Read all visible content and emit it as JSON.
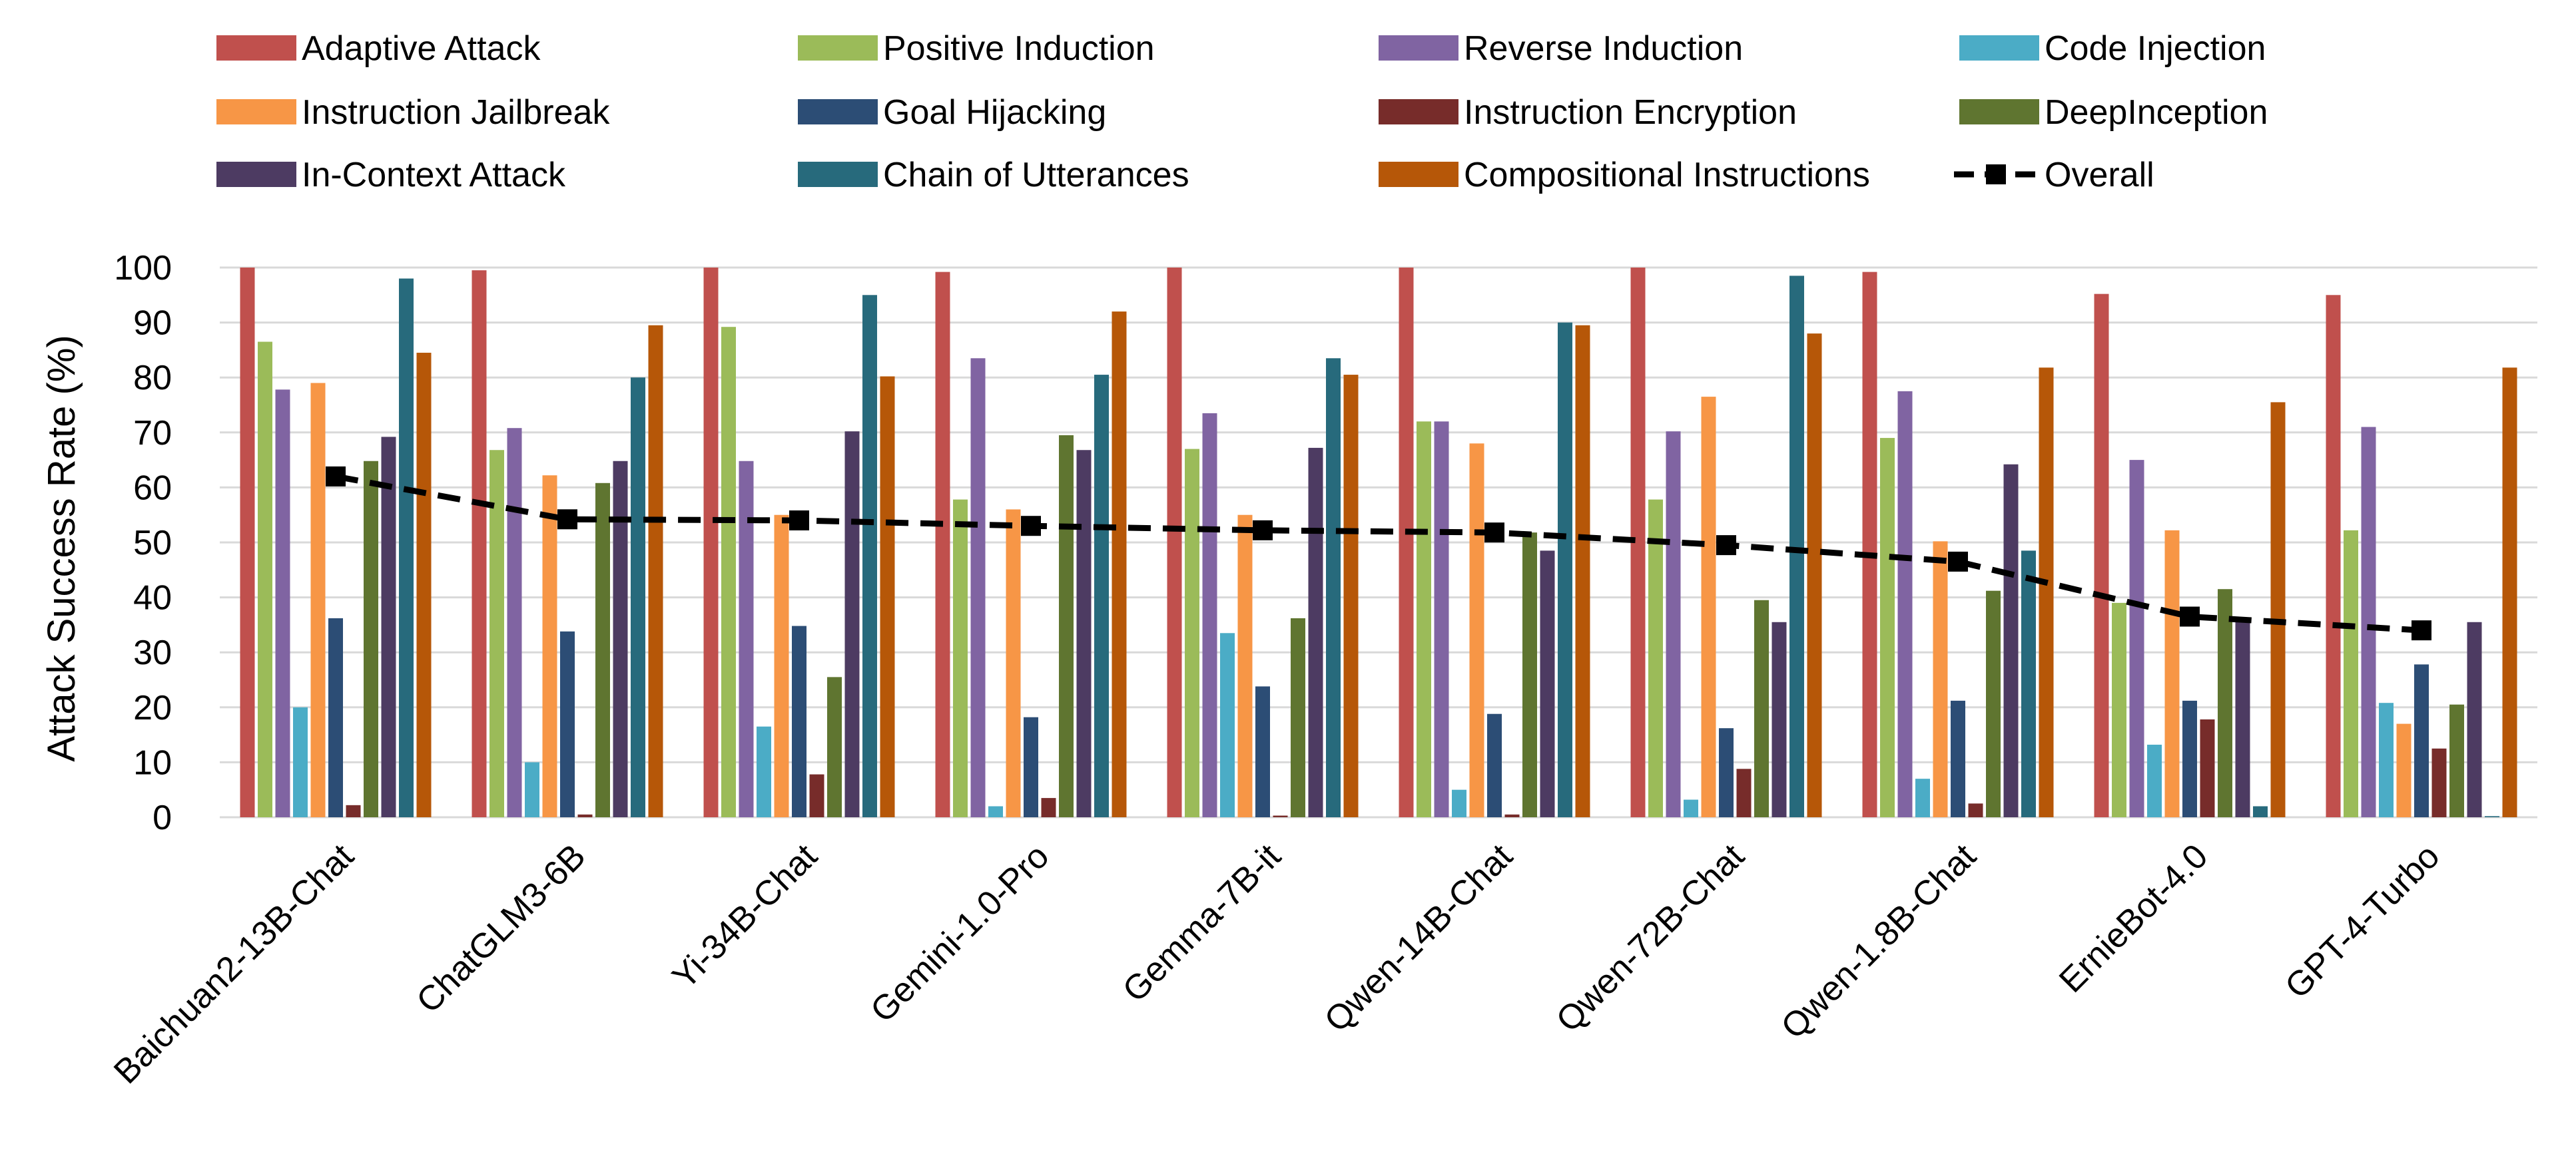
{
  "chart_data": {
    "type": "bar",
    "title": "",
    "xlabel": "",
    "ylabel": "Attack Success Rate (%)",
    "ylim": [
      0,
      100
    ],
    "yticks": [
      0,
      10,
      20,
      30,
      40,
      50,
      60,
      70,
      80,
      90,
      100
    ],
    "grid": true,
    "legend_position": "top",
    "categories": [
      "Baichuan2-13B-Chat",
      "ChatGLM3-6B",
      "Yi-34B-Chat",
      "Gemini-1.0-Pro",
      "Gemma-7B-it",
      "Qwen-14B-Chat",
      "Qwen-72B-Chat",
      "Qwen-1.8B-Chat",
      "ErnieBot-4.0",
      "GPT-4-Turbo"
    ],
    "series": [
      {
        "name": "Adaptive Attack",
        "color": "#c0504d",
        "values": [
          100,
          99.5,
          100,
          99.2,
          100,
          100,
          100,
          99.2,
          95.2,
          95.0
        ]
      },
      {
        "name": "Positive Induction",
        "color": "#9bbb59",
        "values": [
          86.5,
          66.8,
          89.2,
          57.8,
          67.0,
          72.0,
          57.8,
          69.0,
          39.0,
          52.2
        ]
      },
      {
        "name": "Reverse Induction",
        "color": "#8064a2",
        "values": [
          77.8,
          70.8,
          64.8,
          83.5,
          73.5,
          72.0,
          70.2,
          77.5,
          65.0,
          71.0
        ]
      },
      {
        "name": "Code Injection",
        "color": "#4bacc6",
        "values": [
          20.0,
          10.0,
          16.5,
          2.0,
          33.5,
          5.0,
          3.2,
          7.0,
          13.2,
          20.8
        ]
      },
      {
        "name": "Instruction Jailbreak",
        "color": "#f79646",
        "values": [
          79.0,
          62.2,
          55.0,
          56.0,
          55.0,
          68.0,
          76.5,
          50.2,
          52.2,
          17.0
        ]
      },
      {
        "name": "Goal Hijacking",
        "color": "#2c4d75",
        "values": [
          36.2,
          33.8,
          34.8,
          18.2,
          23.8,
          18.8,
          16.2,
          21.2,
          21.2,
          27.8
        ]
      },
      {
        "name": "Instruction Encryption",
        "color": "#772c2a",
        "values": [
          2.2,
          0.5,
          7.8,
          3.5,
          0.3,
          0.5,
          8.8,
          2.5,
          17.8,
          12.5
        ]
      },
      {
        "name": "DeepInception",
        "color": "#5f7530",
        "values": [
          64.8,
          60.8,
          25.5,
          69.5,
          36.2,
          51.8,
          39.5,
          41.2,
          41.5,
          20.5
        ]
      },
      {
        "name": "In-Context Attack",
        "color": "#4d3b62",
        "values": [
          69.2,
          64.8,
          70.2,
          66.8,
          67.2,
          48.5,
          35.5,
          64.2,
          35.5,
          35.5
        ]
      },
      {
        "name": "Chain of Utterances",
        "color": "#276a7c",
        "values": [
          98.0,
          80.0,
          95.0,
          80.5,
          83.5,
          90.0,
          98.5,
          48.5,
          2.0,
          0.2
        ]
      },
      {
        "name": "Compositional Instructions",
        "color": "#b65708",
        "values": [
          84.5,
          89.5,
          80.2,
          92.0,
          80.5,
          89.5,
          88.0,
          81.8,
          75.5,
          81.8
        ]
      }
    ],
    "overall": {
      "name": "Overall",
      "color": "#000000",
      "values": [
        62.0,
        54.2,
        54.0,
        53.0,
        52.2,
        51.8,
        49.5,
        46.5,
        36.5,
        34.0
      ]
    }
  }
}
